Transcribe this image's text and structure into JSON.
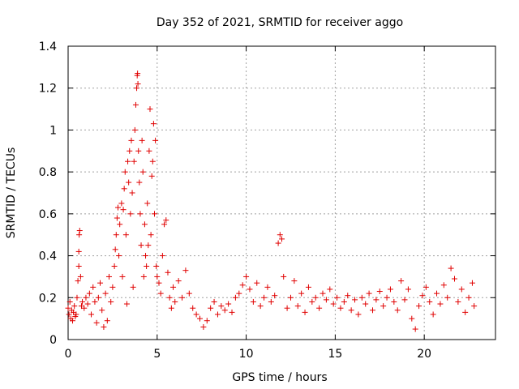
{
  "chart_data": {
    "type": "scatter",
    "title": "Day 352 of 2021, SRMTID for receiver aggo",
    "xlabel": "GPS time / hours",
    "ylabel": "SRMTID / TECUs",
    "xlim": [
      0,
      24
    ],
    "ylim": [
      0,
      1.4
    ],
    "xticks": [
      0,
      5,
      10,
      15,
      20
    ],
    "xtick_labels": [
      "0",
      "5",
      "10",
      "15",
      "20"
    ],
    "yticks": [
      0,
      0.2,
      0.4,
      0.6,
      0.8,
      1,
      1.2,
      1.4
    ],
    "ytick_labels": [
      "0",
      "0.2",
      "0.4",
      "0.6",
      "0.8",
      "1",
      "1.2",
      "1.4"
    ],
    "grid": true,
    "marker": "plus",
    "color": "#e00000",
    "series": [
      {
        "name": "SRMTID",
        "points": [
          [
            0.0,
            0.15
          ],
          [
            0.05,
            0.12
          ],
          [
            0.1,
            0.18
          ],
          [
            0.15,
            0.1
          ],
          [
            0.2,
            0.14
          ],
          [
            0.25,
            0.09
          ],
          [
            0.3,
            0.13
          ],
          [
            0.35,
            0.16
          ],
          [
            0.4,
            0.11
          ],
          [
            0.45,
            0.12
          ],
          [
            0.5,
            0.2
          ],
          [
            0.55,
            0.28
          ],
          [
            0.6,
            0.35
          ],
          [
            0.6,
            0.42
          ],
          [
            0.62,
            0.5
          ],
          [
            0.65,
            0.52
          ],
          [
            0.7,
            0.3
          ],
          [
            0.75,
            0.16
          ],
          [
            0.8,
            0.18
          ],
          [
            0.9,
            0.15
          ],
          [
            1.0,
            0.2
          ],
          [
            1.1,
            0.17
          ],
          [
            1.2,
            0.22
          ],
          [
            1.3,
            0.12
          ],
          [
            1.4,
            0.25
          ],
          [
            1.5,
            0.18
          ],
          [
            1.6,
            0.08
          ],
          [
            1.7,
            0.2
          ],
          [
            1.8,
            0.27
          ],
          [
            1.9,
            0.14
          ],
          [
            2.0,
            0.06
          ],
          [
            2.1,
            0.22
          ],
          [
            2.2,
            0.09
          ],
          [
            2.3,
            0.3
          ],
          [
            2.4,
            0.18
          ],
          [
            2.5,
            0.25
          ],
          [
            2.6,
            0.35
          ],
          [
            2.65,
            0.43
          ],
          [
            2.7,
            0.5
          ],
          [
            2.75,
            0.58
          ],
          [
            2.8,
            0.63
          ],
          [
            2.85,
            0.4
          ],
          [
            2.9,
            0.55
          ],
          [
            3.0,
            0.65
          ],
          [
            3.05,
            0.3
          ],
          [
            3.1,
            0.62
          ],
          [
            3.15,
            0.72
          ],
          [
            3.2,
            0.8
          ],
          [
            3.25,
            0.5
          ],
          [
            3.3,
            0.17
          ],
          [
            3.35,
            0.85
          ],
          [
            3.4,
            0.75
          ],
          [
            3.45,
            0.9
          ],
          [
            3.5,
            0.6
          ],
          [
            3.55,
            0.95
          ],
          [
            3.6,
            0.7
          ],
          [
            3.65,
            0.25
          ],
          [
            3.7,
            0.85
          ],
          [
            3.75,
            1.0
          ],
          [
            3.8,
            1.12
          ],
          [
            3.85,
            1.2
          ],
          [
            3.88,
            1.26
          ],
          [
            3.9,
            1.27
          ],
          [
            3.92,
            1.22
          ],
          [
            3.95,
            0.9
          ],
          [
            4.0,
            0.75
          ],
          [
            4.05,
            0.6
          ],
          [
            4.1,
            0.45
          ],
          [
            4.15,
            0.95
          ],
          [
            4.2,
            0.8
          ],
          [
            4.25,
            0.3
          ],
          [
            4.3,
            0.55
          ],
          [
            4.35,
            0.4
          ],
          [
            4.4,
            0.35
          ],
          [
            4.45,
            0.65
          ],
          [
            4.5,
            0.45
          ],
          [
            4.55,
            0.9
          ],
          [
            4.6,
            1.1
          ],
          [
            4.65,
            0.5
          ],
          [
            4.7,
            0.78
          ],
          [
            4.75,
            0.85
          ],
          [
            4.8,
            1.03
          ],
          [
            4.85,
            0.6
          ],
          [
            4.9,
            0.95
          ],
          [
            4.95,
            0.35
          ],
          [
            5.0,
            0.3
          ],
          [
            5.1,
            0.27
          ],
          [
            5.2,
            0.22
          ],
          [
            5.3,
            0.4
          ],
          [
            5.4,
            0.55
          ],
          [
            5.5,
            0.57
          ],
          [
            5.6,
            0.32
          ],
          [
            5.7,
            0.2
          ],
          [
            5.8,
            0.15
          ],
          [
            5.9,
            0.25
          ],
          [
            6.0,
            0.18
          ],
          [
            6.2,
            0.28
          ],
          [
            6.4,
            0.2
          ],
          [
            6.6,
            0.33
          ],
          [
            6.8,
            0.22
          ],
          [
            7.0,
            0.15
          ],
          [
            7.2,
            0.12
          ],
          [
            7.4,
            0.1
          ],
          [
            7.6,
            0.06
          ],
          [
            7.8,
            0.09
          ],
          [
            8.0,
            0.15
          ],
          [
            8.2,
            0.18
          ],
          [
            8.4,
            0.12
          ],
          [
            8.6,
            0.16
          ],
          [
            8.8,
            0.14
          ],
          [
            9.0,
            0.17
          ],
          [
            9.2,
            0.13
          ],
          [
            9.4,
            0.2
          ],
          [
            9.6,
            0.22
          ],
          [
            9.8,
            0.26
          ],
          [
            10.0,
            0.3
          ],
          [
            10.2,
            0.24
          ],
          [
            10.4,
            0.18
          ],
          [
            10.6,
            0.27
          ],
          [
            10.8,
            0.16
          ],
          [
            11.0,
            0.2
          ],
          [
            11.2,
            0.25
          ],
          [
            11.4,
            0.18
          ],
          [
            11.6,
            0.21
          ],
          [
            11.8,
            0.46
          ],
          [
            11.9,
            0.5
          ],
          [
            12.0,
            0.48
          ],
          [
            12.1,
            0.3
          ],
          [
            12.3,
            0.15
          ],
          [
            12.5,
            0.2
          ],
          [
            12.7,
            0.28
          ],
          [
            12.9,
            0.16
          ],
          [
            13.1,
            0.22
          ],
          [
            13.3,
            0.13
          ],
          [
            13.5,
            0.25
          ],
          [
            13.7,
            0.18
          ],
          [
            13.9,
            0.2
          ],
          [
            14.1,
            0.15
          ],
          [
            14.3,
            0.22
          ],
          [
            14.5,
            0.19
          ],
          [
            14.7,
            0.24
          ],
          [
            14.9,
            0.17
          ],
          [
            15.1,
            0.2
          ],
          [
            15.3,
            0.15
          ],
          [
            15.5,
            0.18
          ],
          [
            15.7,
            0.21
          ],
          [
            15.9,
            0.14
          ],
          [
            16.1,
            0.19
          ],
          [
            16.3,
            0.12
          ],
          [
            16.5,
            0.2
          ],
          [
            16.7,
            0.17
          ],
          [
            16.9,
            0.22
          ],
          [
            17.1,
            0.14
          ],
          [
            17.3,
            0.19
          ],
          [
            17.5,
            0.23
          ],
          [
            17.7,
            0.16
          ],
          [
            17.9,
            0.2
          ],
          [
            18.1,
            0.24
          ],
          [
            18.3,
            0.18
          ],
          [
            18.5,
            0.14
          ],
          [
            18.7,
            0.28
          ],
          [
            18.9,
            0.19
          ],
          [
            19.1,
            0.24
          ],
          [
            19.3,
            0.1
          ],
          [
            19.5,
            0.05
          ],
          [
            19.7,
            0.16
          ],
          [
            19.9,
            0.21
          ],
          [
            20.1,
            0.25
          ],
          [
            20.3,
            0.18
          ],
          [
            20.5,
            0.12
          ],
          [
            20.7,
            0.22
          ],
          [
            20.9,
            0.17
          ],
          [
            21.1,
            0.26
          ],
          [
            21.3,
            0.2
          ],
          [
            21.5,
            0.34
          ],
          [
            21.7,
            0.29
          ],
          [
            21.9,
            0.18
          ],
          [
            22.1,
            0.24
          ],
          [
            22.3,
            0.13
          ],
          [
            22.5,
            0.2
          ],
          [
            22.7,
            0.27
          ],
          [
            22.8,
            0.16
          ]
        ]
      }
    ]
  }
}
